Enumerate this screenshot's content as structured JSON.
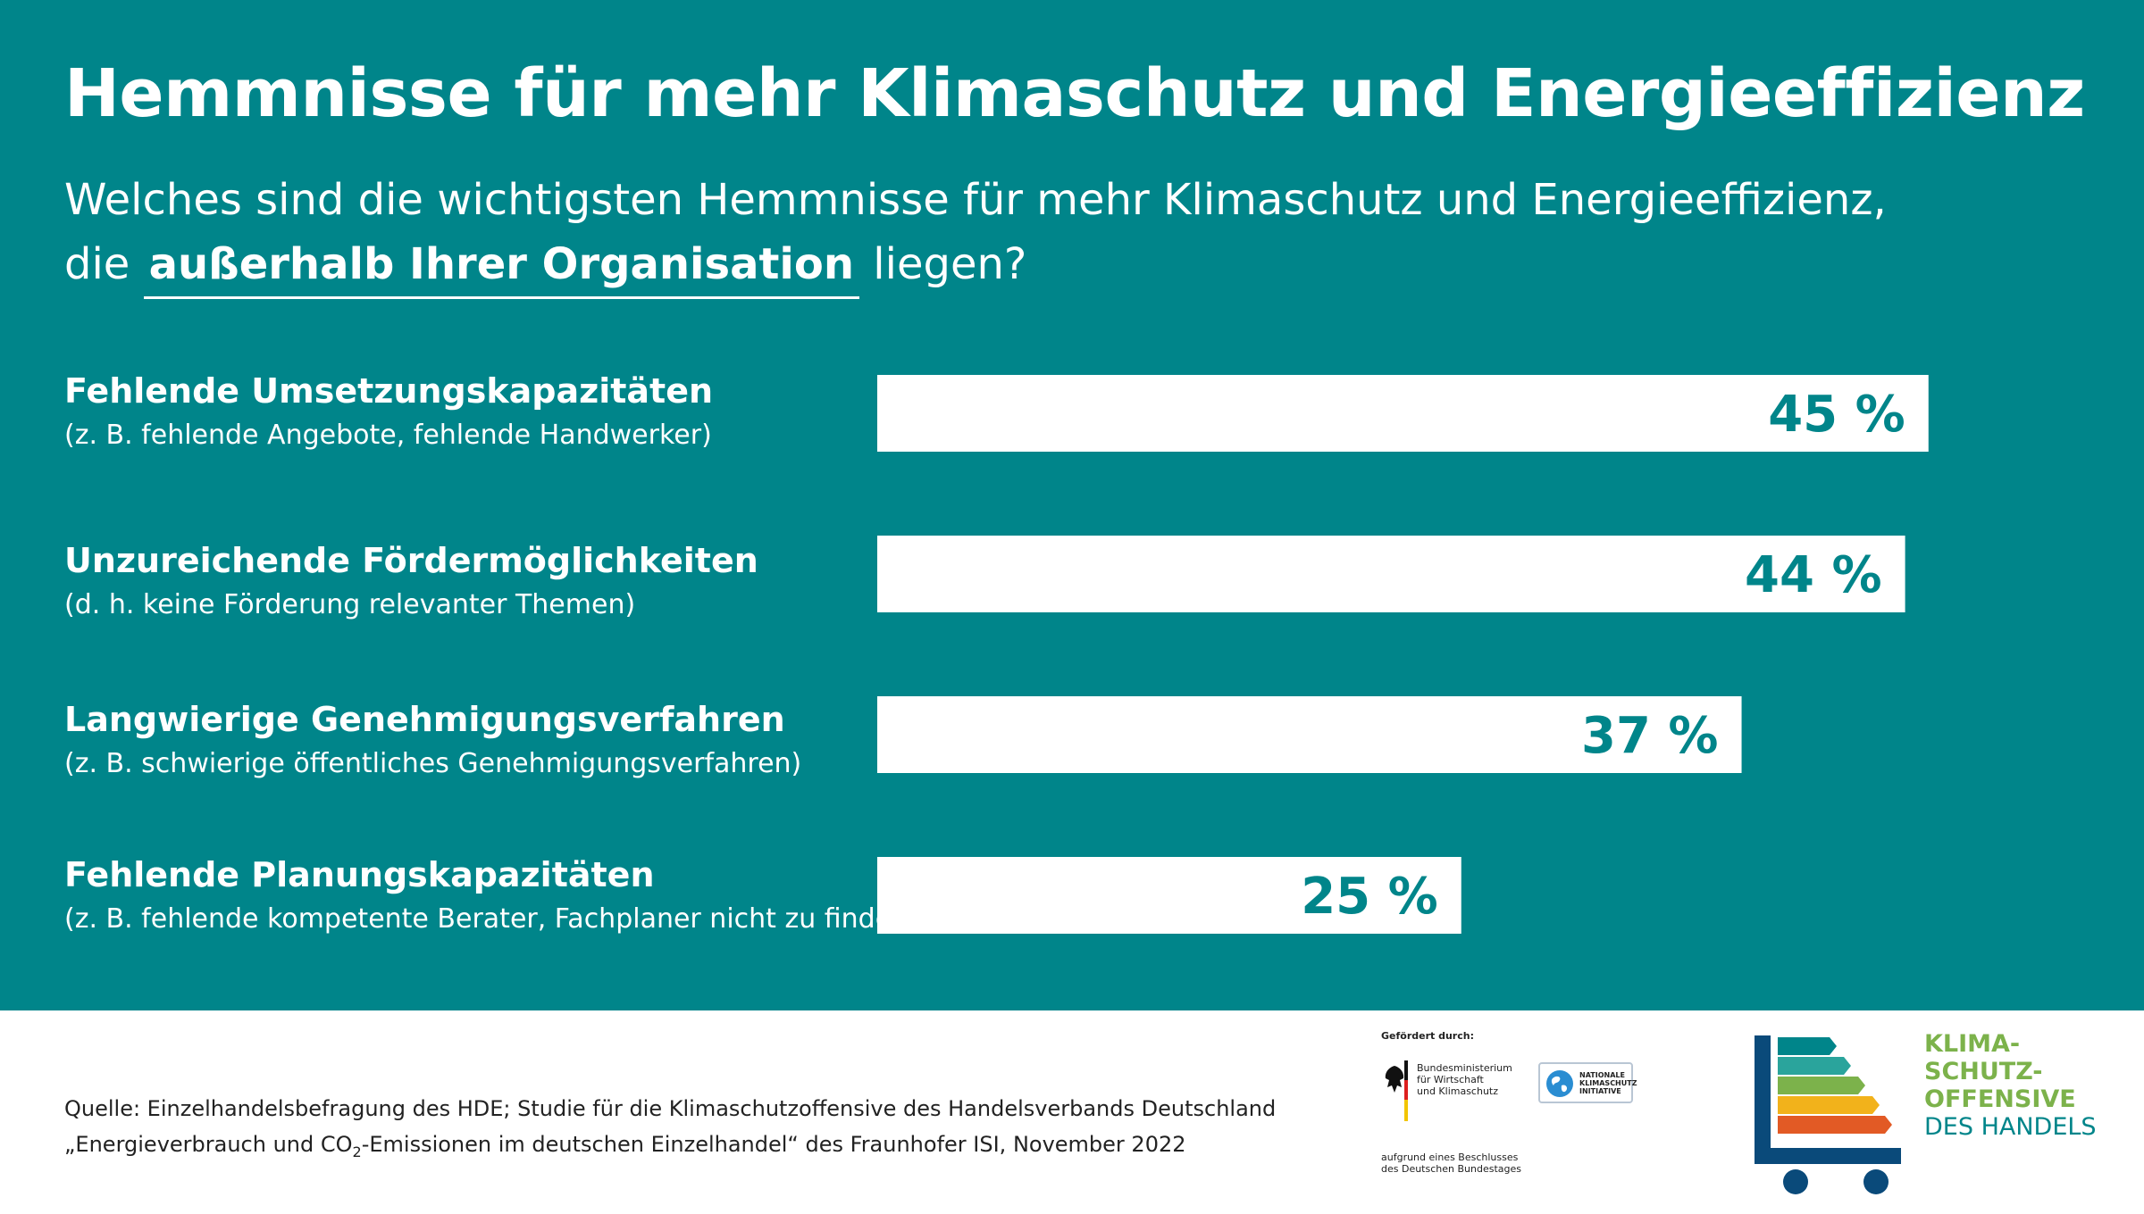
{
  "colors": {
    "background": "#00858a",
    "bar": "#ffffff",
    "value_text": "#00858a",
    "logo_green": "#7cb24b",
    "logo_teal": "#00858a",
    "logo_blue": "#0a4a7a"
  },
  "header": {
    "title": "Hemmnisse für mehr Klimaschutz und Energieeffizienz",
    "subtitle_line1": "Welches sind die wichtigsten Hemmnisse für mehr Klimaschutz und Energieeffizienz,",
    "subtitle_pre": "die",
    "subtitle_emphasis": "außerhalb Ihrer Organisation",
    "subtitle_post": "liegen?"
  },
  "chart_data": {
    "type": "bar",
    "orientation": "horizontal",
    "categories": [
      "Fehlende Umsetzungskapazitäten",
      "Unzureichende Fördermöglichkeiten",
      "Langwierige Genehmigungsverfahren",
      "Fehlende Planungskapazitäten"
    ],
    "category_details": [
      "(z. B. fehlende Angebote, fehlende Handwerker)",
      "(d. h. keine Förderung relevanter Themen)",
      "(z. B. schwierige öffentliches Genehmigungsverfahren)",
      "(z. B. fehlende kompetente Berater, Fachplaner nicht zu finden)"
    ],
    "values": [
      45,
      44,
      37,
      25
    ],
    "value_labels": [
      "45 %",
      "44 %",
      "37 %",
      "25 %"
    ],
    "unit": "%"
  },
  "footer": {
    "source_line1": "Quelle: Einzelhandelsbefragung des HDE; Studie für die Klimaschutzoffensive des Handelsverbands Deutschland",
    "source_line2_pre": "„Energieverbrauch und CO",
    "source_line2_sub": "2",
    "source_line2_post": "-Emissionen im deutschen Einzelhandel“ des Fraunhofer ISI, November 2022",
    "funded_by": "Gefördert durch:",
    "ministry_line1": "Bundesministerium",
    "ministry_line2": "für Wirtschaft",
    "ministry_line3": "und Klimaschutz",
    "nki_line1": "NATIONALE",
    "nki_line2": "KLIMASCHUTZ",
    "nki_line3": "INITIATIVE",
    "resolution_line1": "aufgrund eines Beschlusses",
    "resolution_line2": "des Deutschen Bundestages",
    "logo_line1": "KLIMA-",
    "logo_line2": "SCHUTZ-",
    "logo_line3": "OFFENSIVE",
    "logo_line4": "DES HANDELS"
  }
}
